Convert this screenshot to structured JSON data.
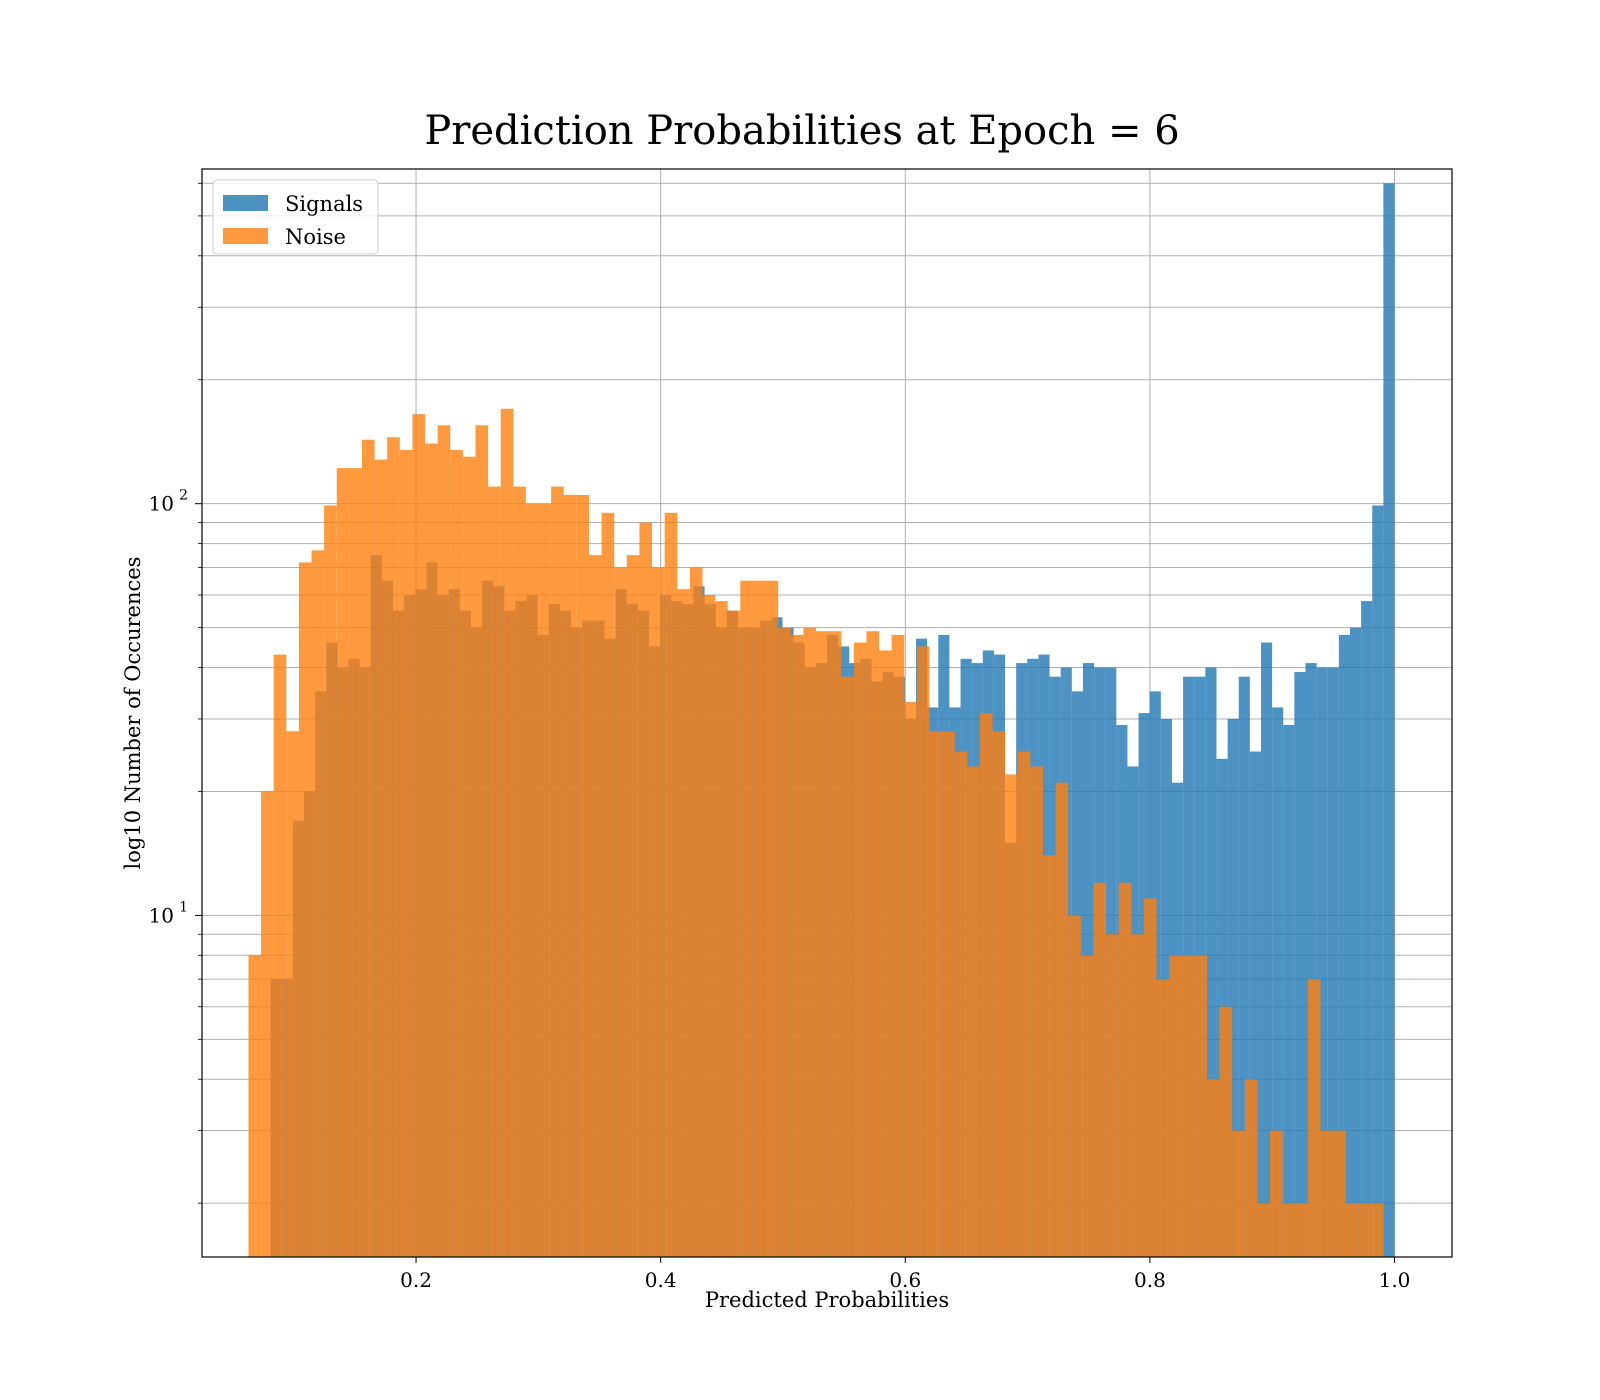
{
  "chart_data": {
    "type": "histogram",
    "title": "Prediction Probabilities at Epoch = 6",
    "xlabel": "Predicted Probabilities",
    "ylabel": "log10 Number of Occurences",
    "yscale": "log",
    "xlim": [
      0.025,
      1.047
    ],
    "ylim": [
      1.48,
      650
    ],
    "grid": true,
    "grid_minor_y": true,
    "legend_position": "top-left",
    "x_ticks": [
      {
        "value": 0.2,
        "label": "0.2"
      },
      {
        "value": 0.4,
        "label": "0.4"
      },
      {
        "value": 0.6,
        "label": "0.6"
      },
      {
        "value": 0.8,
        "label": "0.8"
      },
      {
        "value": 1.0,
        "label": "1.0"
      }
    ],
    "y_ticks": [
      {
        "value": 10,
        "base": "10",
        "exp": "1"
      },
      {
        "value": 100,
        "base": "10",
        "exp": "2"
      }
    ],
    "series": [
      {
        "name": "Signals",
        "color": "#1f77b4",
        "opacity": 0.8,
        "bin_start": 0.072,
        "bin_end": 1.0,
        "values": [
          0,
          7,
          7,
          17,
          20,
          35,
          46,
          40,
          42,
          40,
          75,
          65,
          55,
          60,
          62,
          72,
          60,
          62,
          55,
          50,
          65,
          63,
          55,
          58,
          60,
          48,
          57,
          55,
          50,
          52,
          52,
          47,
          62,
          57,
          55,
          45,
          60,
          58,
          57,
          63,
          57,
          50,
          55,
          50,
          50,
          52,
          53,
          50,
          46,
          40,
          41,
          48,
          45,
          41,
          42,
          37,
          39,
          38,
          30,
          47,
          32,
          48,
          32,
          42,
          41,
          44,
          43,
          15,
          41,
          42,
          43,
          38,
          40,
          35,
          41,
          40,
          40,
          29,
          23,
          31,
          35,
          30,
          21,
          38,
          38,
          40,
          24,
          30,
          38,
          25,
          46,
          32,
          29,
          39,
          41,
          40,
          40,
          48,
          50,
          58,
          99,
          600,
          0
        ]
      },
      {
        "name": "Noise",
        "color": "#ff7f0e",
        "opacity": 0.8,
        "bin_start": 0.063,
        "bin_end": 0.991,
        "values": [
          8,
          20,
          43,
          28,
          72,
          77,
          99,
          122,
          122,
          143,
          128,
          145,
          135,
          165,
          140,
          155,
          135,
          130,
          155,
          110,
          170,
          110,
          100,
          100,
          110,
          105,
          105,
          75,
          95,
          70,
          75,
          90,
          70,
          95,
          62,
          70,
          60,
          58,
          55,
          65,
          65,
          65,
          50,
          48,
          50,
          49,
          49,
          38,
          46,
          49,
          44,
          48,
          33,
          45,
          28,
          28,
          25,
          23,
          31,
          28,
          22,
          25,
          23,
          14,
          21,
          10,
          8,
          12,
          9,
          12,
          9,
          11,
          7,
          8,
          8,
          8,
          4,
          6,
          3,
          4,
          2,
          3,
          2,
          2,
          7,
          3,
          3,
          2,
          2,
          2,
          0
        ]
      }
    ]
  }
}
